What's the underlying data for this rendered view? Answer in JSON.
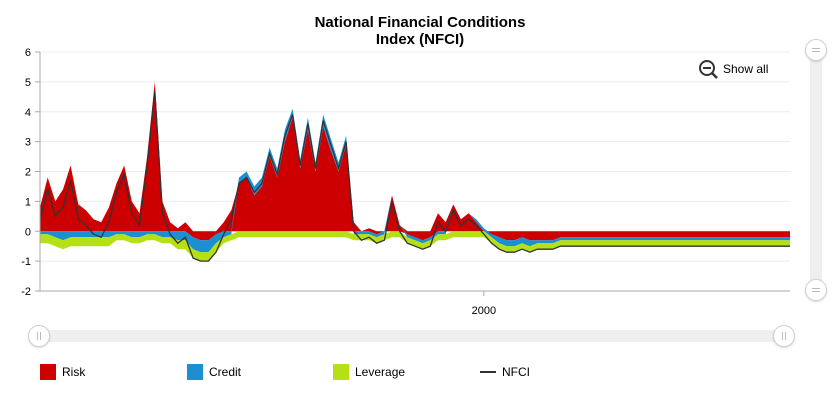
{
  "chart_data": {
    "type": "area",
    "title": "National Financial Conditions",
    "title_line2": "Index (NFCI)",
    "ylim": [
      -2,
      6
    ],
    "yticks": [
      "6",
      "5",
      "4",
      "3",
      "2",
      "1",
      "0",
      "-1",
      "-2"
    ],
    "x_range": [
      1971,
      2020
    ],
    "xtick_label": "2000",
    "xtick_value": 2000,
    "grid": true,
    "stacked": true,
    "legend_position": "bottom",
    "series": [
      {
        "name": "Risk",
        "color": "#cc0000"
      },
      {
        "name": "Credit",
        "color": "#1b8fd0"
      },
      {
        "name": "Leverage",
        "color": "#b5e015"
      },
      {
        "name": "NFCI",
        "color": "#333333"
      }
    ],
    "x": [
      1971.0,
      1971.5,
      1972.0,
      1972.5,
      1973.0,
      1973.5,
      1974.0,
      1974.5,
      1975.0,
      1975.5,
      1976.0,
      1976.5,
      1977.0,
      1977.5,
      1978.0,
      1978.5,
      1979.0,
      1979.5,
      1980.0,
      1980.5,
      1981.0,
      1981.5,
      1982.0,
      1982.5,
      1983.0,
      1983.5,
      1984.0,
      1984.5,
      1985.0,
      1985.5,
      1986.0,
      1986.5,
      1987.0,
      1987.5,
      1988.0,
      1988.5,
      1989.0,
      1989.5,
      1990.0,
      1990.5,
      1991.0,
      1991.5,
      1992.0,
      1992.5,
      1993.0,
      1993.5,
      1994.0,
      1994.5,
      1995.0,
      1995.5,
      1996.0,
      1996.5,
      1997.0,
      1997.5,
      1998.0,
      1998.5,
      1999.0,
      1999.5,
      2000.0,
      2000.5,
      2001.0,
      2001.5,
      2002.0,
      2002.5,
      2003.0,
      2003.5,
      2004.0,
      2004.5,
      2005.0,
      2005.5,
      2006.0,
      2006.5,
      2007.0,
      2007.5,
      2008.0,
      2008.5,
      2009.0,
      2009.5,
      2010.0,
      2010.5,
      2011.0,
      2011.5,
      2012.0,
      2012.5,
      2013.0,
      2013.5,
      2014.0,
      2014.5,
      2015.0,
      2015.5,
      2016.0,
      2016.5,
      2017.0,
      2017.5,
      2018.0,
      2018.5,
      2019.0,
      2019.5,
      2020.0
    ],
    "risk": [
      0.8,
      1.8,
      1.0,
      1.4,
      2.2,
      0.9,
      0.7,
      0.4,
      0.3,
      0.8,
      1.6,
      2.2,
      1.0,
      0.6,
      2.5,
      5.0,
      1.0,
      0.3,
      0.1,
      0.3,
      -0.2,
      -0.3,
      -0.3,
      -0.1,
      0.3,
      0.7,
      1.6,
      1.8,
      1.2,
      1.5,
      2.5,
      1.8,
      3.0,
      3.8,
      2.1,
      3.4,
      2.0,
      3.5,
      2.7,
      2.0,
      2.9,
      0.3,
      0.0,
      0.1,
      -0.1,
      0.0,
      1.2,
      0.2,
      -0.1,
      -0.2,
      -0.3,
      -0.2,
      0.6,
      0.3,
      0.9,
      0.4,
      0.6,
      0.3,
      0.0,
      -0.1,
      -0.2,
      -0.3,
      -0.3,
      -0.2,
      -0.3,
      -0.3,
      -0.3,
      -0.3,
      -0.2,
      -0.2,
      -0.2,
      -0.2,
      -0.2,
      -0.2,
      -0.2,
      -0.2,
      -0.2,
      -0.2,
      -0.2,
      -0.2,
      -0.2,
      -0.2,
      -0.2,
      -0.2,
      -0.2,
      -0.2,
      -0.2,
      -0.2,
      -0.2,
      -0.2,
      -0.2,
      -0.2,
      -0.2,
      -0.2,
      -0.2,
      -0.2,
      -0.2,
      -0.2,
      -0.2
    ],
    "credit": [
      -0.1,
      -0.1,
      -0.2,
      -0.3,
      -0.2,
      -0.2,
      -0.2,
      -0.2,
      -0.2,
      -0.2,
      -0.1,
      -0.1,
      -0.2,
      -0.2,
      -0.1,
      -0.1,
      -0.2,
      -0.2,
      -0.3,
      -0.3,
      -0.4,
      -0.4,
      -0.4,
      -0.3,
      -0.2,
      -0.1,
      0.2,
      0.2,
      0.3,
      0.3,
      0.3,
      0.3,
      0.4,
      0.3,
      0.3,
      0.4,
      0.3,
      0.4,
      0.4,
      0.3,
      0.3,
      -0.1,
      -0.1,
      -0.1,
      -0.1,
      -0.1,
      0.0,
      0.0,
      -0.1,
      -0.1,
      -0.1,
      -0.1,
      -0.1,
      -0.1,
      0.0,
      0.0,
      0.0,
      0.1,
      0.1,
      -0.1,
      -0.2,
      -0.2,
      -0.2,
      -0.2,
      -0.2,
      -0.1,
      -0.1,
      -0.1,
      -0.1,
      -0.1,
      -0.1,
      -0.1,
      -0.1,
      -0.1,
      -0.1,
      -0.1,
      -0.1,
      -0.1,
      -0.1,
      -0.1,
      -0.1,
      -0.1,
      -0.1,
      -0.1,
      -0.1,
      -0.1,
      -0.1,
      -0.1,
      -0.1,
      -0.1,
      -0.1,
      -0.1,
      -0.1,
      -0.1,
      -0.1,
      -0.1,
      -0.1,
      -0.1,
      -0.1
    ],
    "leverage": [
      -0.3,
      -0.3,
      -0.3,
      -0.3,
      -0.3,
      -0.3,
      -0.3,
      -0.3,
      -0.3,
      -0.3,
      -0.2,
      -0.2,
      -0.2,
      -0.2,
      -0.2,
      -0.2,
      -0.2,
      -0.2,
      -0.3,
      -0.3,
      -0.3,
      -0.3,
      -0.3,
      -0.3,
      -0.2,
      -0.2,
      -0.2,
      -0.2,
      -0.2,
      -0.2,
      -0.2,
      -0.2,
      -0.2,
      -0.2,
      -0.2,
      -0.2,
      -0.2,
      -0.2,
      -0.2,
      -0.2,
      -0.2,
      -0.2,
      -0.2,
      -0.2,
      -0.2,
      -0.2,
      -0.2,
      -0.2,
      -0.2,
      -0.2,
      -0.2,
      -0.2,
      -0.2,
      -0.2,
      -0.2,
      -0.2,
      -0.2,
      -0.2,
      -0.2,
      -0.2,
      -0.2,
      -0.2,
      -0.2,
      -0.2,
      -0.2,
      -0.2,
      -0.2,
      -0.2,
      -0.2,
      -0.2,
      -0.2,
      -0.2,
      -0.2,
      -0.2,
      -0.2,
      -0.2,
      -0.2,
      -0.2,
      -0.2,
      -0.2,
      -0.2,
      -0.2,
      -0.2,
      -0.2,
      -0.2,
      -0.2,
      -0.2,
      -0.2,
      -0.2,
      -0.2,
      -0.2,
      -0.2,
      -0.2,
      -0.2,
      -0.2,
      -0.2,
      -0.2,
      -0.2,
      -0.2
    ],
    "nfci": [
      0.4,
      1.4,
      0.5,
      0.8,
      1.7,
      0.4,
      0.2,
      -0.1,
      -0.2,
      0.3,
      1.3,
      1.9,
      0.6,
      0.2,
      2.2,
      4.7,
      0.6,
      -0.1,
      -0.4,
      -0.2,
      -0.9,
      -1.0,
      -1.0,
      -0.7,
      -0.1,
      0.4,
      1.6,
      1.8,
      1.3,
      1.6,
      2.6,
      1.9,
      3.2,
      3.9,
      2.2,
      3.6,
      2.1,
      3.7,
      2.9,
      2.1,
      3.0,
      0.0,
      -0.3,
      -0.2,
      -0.4,
      -0.3,
      1.0,
      0.0,
      -0.4,
      -0.5,
      -0.6,
      -0.5,
      0.3,
      0.0,
      0.7,
      0.2,
      0.4,
      0.2,
      -0.1,
      -0.4,
      -0.6,
      -0.7,
      -0.7,
      -0.6,
      -0.7,
      -0.6,
      -0.6,
      -0.6,
      -0.5,
      -0.5,
      -0.5,
      -0.5,
      -0.5,
      -0.5,
      -0.5,
      -0.5,
      -0.5,
      -0.5,
      -0.5,
      -0.5,
      -0.5,
      -0.5,
      -0.5,
      -0.5,
      -0.5,
      -0.5,
      -0.5,
      -0.5,
      -0.5,
      -0.5,
      -0.5,
      -0.5,
      -0.5,
      -0.5,
      -0.5,
      -0.5,
      -0.5,
      -0.5,
      -0.5
    ]
  },
  "controls": {
    "show_all_label": "Show all"
  }
}
